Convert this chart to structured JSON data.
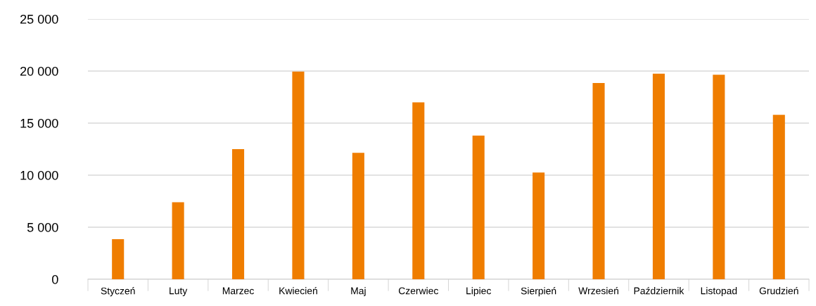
{
  "chart_data": {
    "type": "bar",
    "categories": [
      "Styczeń",
      "Luty",
      "Marzec",
      "Kwiecień",
      "Maj",
      "Czerwiec",
      "Lipiec",
      "Sierpień",
      "Wrzesień",
      "Październik",
      "Listopad",
      "Grudzień"
    ],
    "values": [
      3850,
      7400,
      12500,
      19950,
      12150,
      17000,
      13800,
      10250,
      18850,
      19750,
      19650,
      15800
    ],
    "color": "#ef7d00",
    "ylim": [
      0,
      25000
    ],
    "yticks": [
      {
        "value": 0,
        "label": "0"
      },
      {
        "value": 5000,
        "label": "5 000"
      },
      {
        "value": 10000,
        "label": "10 000"
      },
      {
        "value": 15000,
        "label": "15 000"
      },
      {
        "value": 20000,
        "label": "20 000"
      },
      {
        "value": 25000,
        "label": "25 000"
      }
    ],
    "grid": "y"
  }
}
